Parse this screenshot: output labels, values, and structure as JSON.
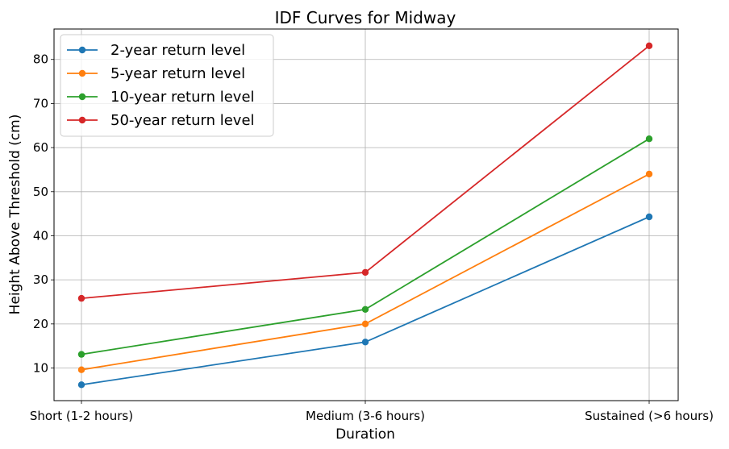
{
  "chart_data": {
    "type": "line",
    "title": "IDF Curves for Midway",
    "xlabel": "Duration",
    "ylabel": "Height Above Threshold (cm)",
    "categories": [
      "Short (1-2 hours)",
      "Medium (3-6 hours)",
      "Sustained (>6 hours)"
    ],
    "ylim": [
      2.6,
      86.9
    ],
    "yticks": [
      10,
      20,
      30,
      40,
      50,
      60,
      70,
      80
    ],
    "grid": true,
    "legend_position": "top-left",
    "markers": "circle",
    "series": [
      {
        "name": "2-year return level",
        "color": "#1f77b4",
        "values": [
          6.2,
          15.9,
          44.3
        ]
      },
      {
        "name": "5-year return level",
        "color": "#ff7f0e",
        "values": [
          9.6,
          20.0,
          54.0
        ]
      },
      {
        "name": "10-year return level",
        "color": "#2ca02c",
        "values": [
          13.1,
          23.3,
          62.0
        ]
      },
      {
        "name": "50-year return level",
        "color": "#d62728",
        "values": [
          25.8,
          31.7,
          83.1
        ]
      }
    ]
  }
}
